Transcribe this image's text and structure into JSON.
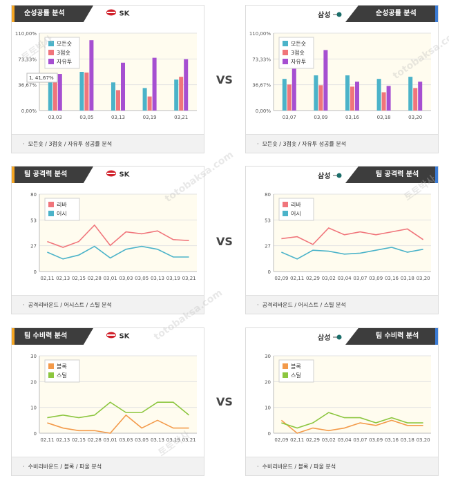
{
  "vs_label": "VS",
  "teams": {
    "left": "SK",
    "right": "삼성"
  },
  "watermark": {
    "kr": "토토박사",
    "en": "totobaksa.com"
  },
  "sections": [
    {
      "title": "순성공률 분석",
      "footer": "모든숏 / 3점숏 / 자유투 성공률 분석"
    },
    {
      "title": "팀 공격력 분석",
      "footer": "공격리바운드 / 어시스트 / 스틸 분석"
    },
    {
      "title": "팀 수비력 분석",
      "footer": "수비리바운드 / 블록 / 파울 분석"
    }
  ],
  "colors": {
    "teal": "#4bb3c9",
    "coral": "#f0757b",
    "purple": "#a64fd1",
    "orange": "#f39a4a",
    "green": "#8cc63f",
    "plotbg": "#fffcef"
  },
  "chart_data": [
    {
      "id": "shooting-sk",
      "type": "bar",
      "categories": [
        "03,03",
        "03,05",
        "03,13",
        "03,19",
        "03,21"
      ],
      "yticks": [
        "0,00%",
        "36,67%",
        "73,33%",
        "110,00%"
      ],
      "ylim": [
        0,
        110
      ],
      "tooltip": "1, 41,67%",
      "series": [
        {
          "name": "모든숏",
          "color": "#4bb3c9",
          "values": [
            47,
            55,
            40,
            32,
            44
          ]
        },
        {
          "name": "3점숏",
          "color": "#f0757b",
          "values": [
            40,
            54,
            29,
            20,
            48
          ]
        },
        {
          "name": "자유투",
          "color": "#a64fd1",
          "values": [
            52,
            100,
            68,
            75,
            73
          ]
        }
      ]
    },
    {
      "id": "shooting-samsung",
      "type": "bar",
      "categories": [
        "03,07",
        "03,09",
        "03,16",
        "03,18",
        "03,20"
      ],
      "yticks": [
        "0,00%",
        "36,67%",
        "73,33%",
        "110,00%"
      ],
      "ylim": [
        0,
        110
      ],
      "series": [
        {
          "name": "모든숏",
          "color": "#4bb3c9",
          "values": [
            45,
            50,
            50,
            45,
            48
          ]
        },
        {
          "name": "3점숏",
          "color": "#f0757b",
          "values": [
            37,
            36,
            34,
            26,
            32
          ]
        },
        {
          "name": "자유투",
          "color": "#a64fd1",
          "values": [
            66,
            86,
            41,
            35,
            41
          ]
        }
      ]
    },
    {
      "id": "offense-sk",
      "type": "line",
      "categories": [
        "02,11",
        "02,13",
        "02,15",
        "02,28",
        "03,01",
        "03,03",
        "03,05",
        "03,13",
        "03,19",
        "03,21"
      ],
      "yticks": [
        "0",
        "27",
        "53",
        "80"
      ],
      "ylim": [
        0,
        80
      ],
      "series": [
        {
          "name": "리바",
          "color": "#f0757b",
          "values": [
            31,
            25,
            31,
            48,
            27,
            41,
            39,
            42,
            33,
            32
          ]
        },
        {
          "name": "어시",
          "color": "#4bb3c9",
          "values": [
            20,
            13,
            17,
            26,
            14,
            23,
            26,
            23,
            15,
            15
          ]
        }
      ]
    },
    {
      "id": "offense-samsung",
      "type": "line",
      "categories": [
        "02,09",
        "02,11",
        "02,29",
        "03,02",
        "03,04",
        "03,07",
        "03,09",
        "03,16",
        "03,18",
        "03,20"
      ],
      "yticks": [
        "0",
        "27",
        "53",
        "80"
      ],
      "ylim": [
        0,
        80
      ],
      "series": [
        {
          "name": "리바",
          "color": "#f0757b",
          "values": [
            34,
            36,
            28,
            45,
            38,
            41,
            38,
            41,
            44,
            33
          ]
        },
        {
          "name": "어시",
          "color": "#4bb3c9",
          "values": [
            20,
            13,
            22,
            21,
            18,
            19,
            22,
            25,
            20,
            23
          ]
        }
      ]
    },
    {
      "id": "defense-sk",
      "type": "line",
      "categories": [
        "02,11",
        "02,13",
        "02,15",
        "02,28",
        "03,01",
        "03,03",
        "03,05",
        "03,13",
        "03,19",
        "03,21"
      ],
      "yticks": [
        "0",
        "10",
        "20",
        "30"
      ],
      "ylim": [
        0,
        30
      ],
      "series": [
        {
          "name": "블록",
          "color": "#f39a4a",
          "values": [
            4,
            2,
            1,
            1,
            0,
            7,
            2,
            5,
            2,
            2
          ]
        },
        {
          "name": "스틸",
          "color": "#8cc63f",
          "values": [
            6,
            7,
            6,
            7,
            12,
            8,
            8,
            12,
            12,
            7
          ]
        }
      ]
    },
    {
      "id": "defense-samsung",
      "type": "line",
      "categories": [
        "02,09",
        "02,11",
        "02,29",
        "03,02",
        "03,04",
        "03,07",
        "03,09",
        "03,16",
        "03,18",
        "03,20"
      ],
      "yticks": [
        "0",
        "10",
        "20",
        "30"
      ],
      "ylim": [
        0,
        30
      ],
      "series": [
        {
          "name": "블록",
          "color": "#f39a4a",
          "values": [
            5,
            0,
            2,
            1,
            2,
            4,
            3,
            5,
            3,
            3
          ]
        },
        {
          "name": "스틸",
          "color": "#8cc63f",
          "values": [
            4,
            2,
            4,
            8,
            6,
            6,
            4,
            6,
            4,
            4
          ]
        }
      ]
    }
  ]
}
